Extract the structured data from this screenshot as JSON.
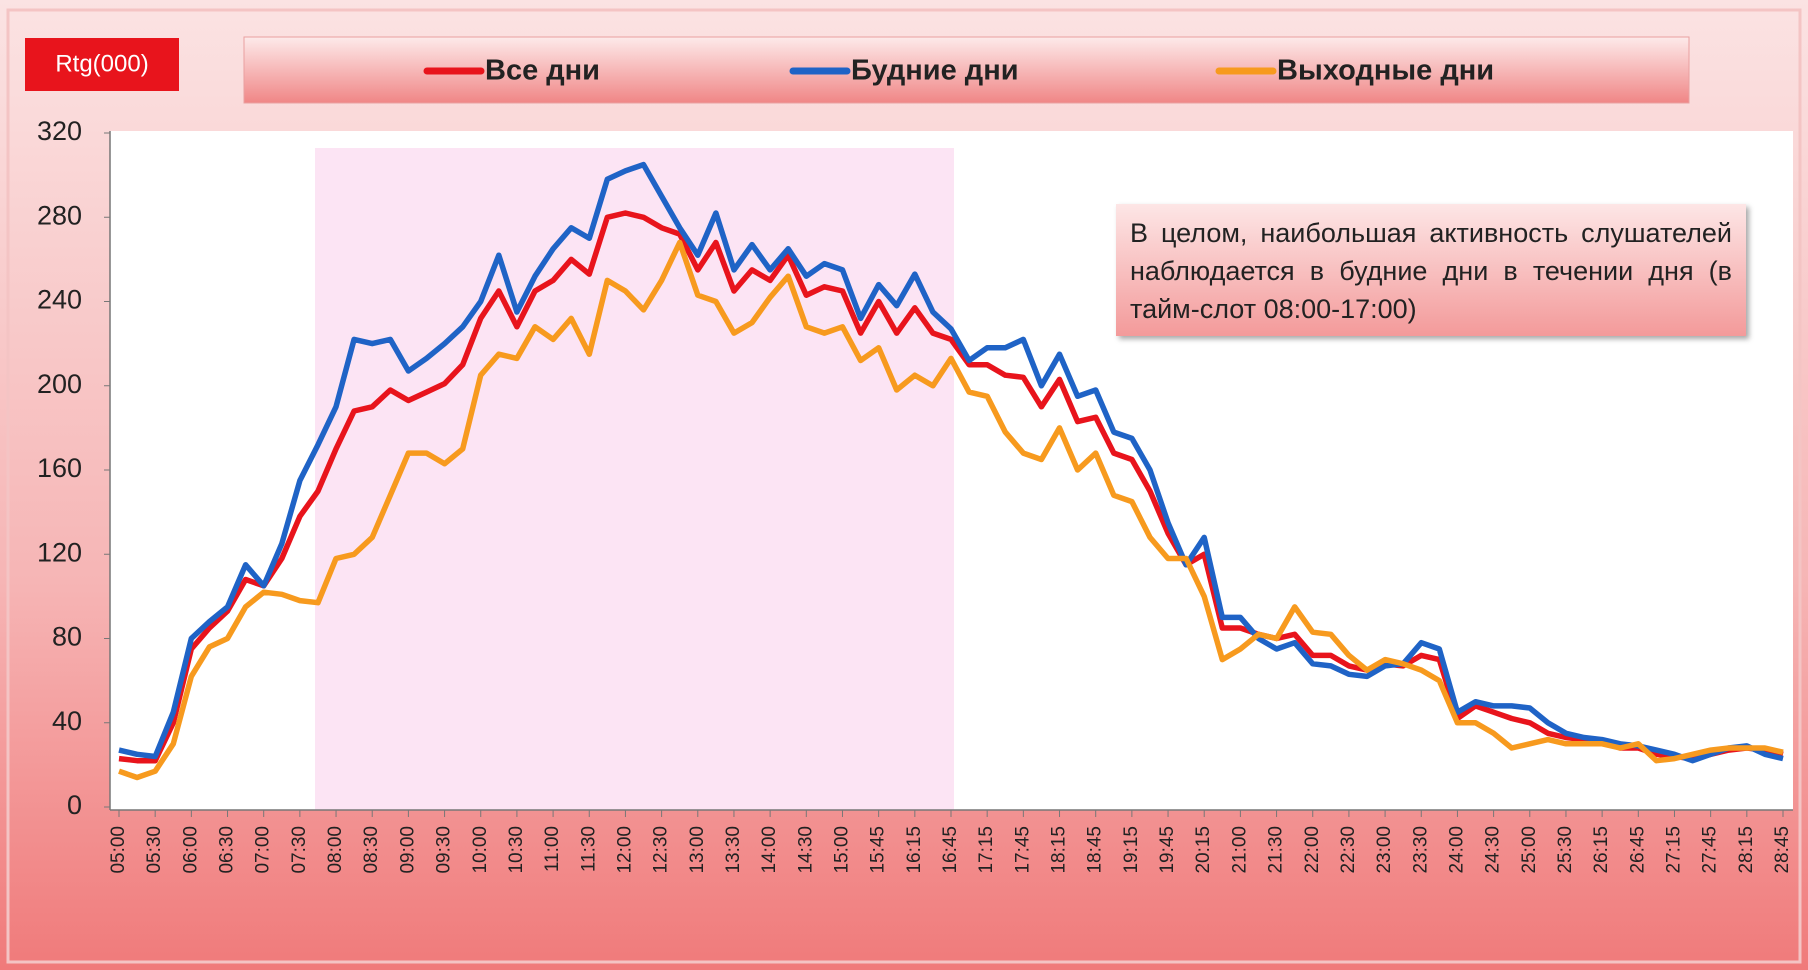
{
  "chart_data": {
    "type": "line",
    "ylabel": "Rtg(000)",
    "annotation": "В целом, наибольшая активность слушателей наблюдается в будние дни в течении дня (в тайм-слот 08:00-17:00)",
    "categories": [
      "05:00",
      null,
      "05:30",
      null,
      "06:00",
      null,
      "06:30",
      null,
      "07:00",
      null,
      "07:30",
      null,
      "08:00",
      null,
      "08:30",
      null,
      "09:00",
      null,
      "09:30",
      null,
      "10:00",
      null,
      "10:30",
      null,
      "11:00",
      null,
      "11:30",
      null,
      "12:00",
      null,
      "12:30",
      null,
      "13:00",
      null,
      "13:30",
      null,
      "14:00",
      null,
      "14:30",
      null,
      "15:00",
      null,
      "15:45",
      null,
      "16:15",
      null,
      "16:45",
      null,
      "17:15",
      null,
      "17:45",
      null,
      "18:15",
      null,
      "18:45",
      null,
      "19:15",
      null,
      "19:45",
      null,
      "20:15",
      null,
      "21:00",
      null,
      "21:30",
      null,
      "22:00",
      null,
      "22:30",
      null,
      "23:00",
      null,
      "23:30",
      null,
      "24:00",
      null,
      "24:30",
      null,
      "25:00",
      null,
      "25:30",
      null,
      "26:15",
      null,
      "26:45",
      null,
      "27:15",
      null,
      "27:45",
      null,
      "28:15",
      null,
      "28:45"
    ],
    "series": [
      {
        "name": "Все дни",
        "color": "#e8141c",
        "values": [
          23,
          22,
          22,
          40,
          75,
          85,
          93,
          108,
          105,
          118,
          138,
          150,
          170,
          188,
          190,
          198,
          193,
          197,
          201,
          210,
          232,
          245,
          228,
          245,
          250,
          260,
          253,
          280,
          282,
          280,
          275,
          272,
          255,
          268,
          245,
          255,
          250,
          262,
          243,
          247,
          245,
          225,
          240,
          225,
          237,
          225,
          222,
          210,
          210,
          205,
          204,
          190,
          203,
          183,
          185,
          168,
          165,
          150,
          130,
          115,
          120,
          85,
          85,
          82,
          80,
          82,
          72,
          72,
          67,
          65,
          68,
          67,
          72,
          70,
          42,
          48,
          45,
          42,
          40,
          35,
          33,
          32,
          31,
          28,
          28,
          25,
          24,
          23,
          25,
          27,
          28,
          27,
          25
        ]
      },
      {
        "name": "Будние дни",
        "color": "#1f63c6",
        "values": [
          27,
          25,
          24,
          45,
          80,
          88,
          95,
          115,
          105,
          125,
          155,
          172,
          190,
          222,
          220,
          222,
          207,
          213,
          220,
          228,
          240,
          262,
          235,
          252,
          265,
          275,
          270,
          298,
          302,
          305,
          290,
          275,
          262,
          282,
          255,
          267,
          255,
          265,
          252,
          258,
          255,
          232,
          248,
          238,
          253,
          235,
          227,
          212,
          218,
          218,
          222,
          200,
          215,
          195,
          198,
          178,
          175,
          160,
          135,
          115,
          128,
          90,
          90,
          80,
          75,
          78,
          68,
          67,
          63,
          62,
          67,
          68,
          78,
          75,
          45,
          50,
          48,
          48,
          47,
          40,
          35,
          33,
          32,
          30,
          29,
          27,
          25,
          22,
          25,
          28,
          29,
          25,
          23
        ]
      },
      {
        "name": "Выходные дни",
        "color": "#f79a1e",
        "values": [
          17,
          14,
          17,
          30,
          62,
          76,
          80,
          95,
          102,
          101,
          98,
          97,
          118,
          120,
          128,
          148,
          168,
          168,
          163,
          170,
          205,
          215,
          213,
          228,
          222,
          232,
          215,
          250,
          245,
          236,
          250,
          268,
          243,
          240,
          225,
          230,
          242,
          252,
          228,
          225,
          228,
          212,
          218,
          198,
          205,
          200,
          213,
          197,
          195,
          178,
          168,
          165,
          180,
          160,
          168,
          148,
          145,
          128,
          118,
          118,
          100,
          70,
          75,
          82,
          80,
          95,
          83,
          82,
          72,
          65,
          70,
          68,
          65,
          60,
          40,
          40,
          35,
          28,
          30,
          32,
          30,
          30,
          30,
          28,
          30,
          22,
          23,
          25,
          27,
          28,
          28,
          28,
          26
        ]
      }
    ],
    "ylim": [
      0,
      320
    ],
    "yticks": [
      0,
      40,
      80,
      120,
      160,
      200,
      240,
      280,
      320
    ],
    "grid": false
  }
}
